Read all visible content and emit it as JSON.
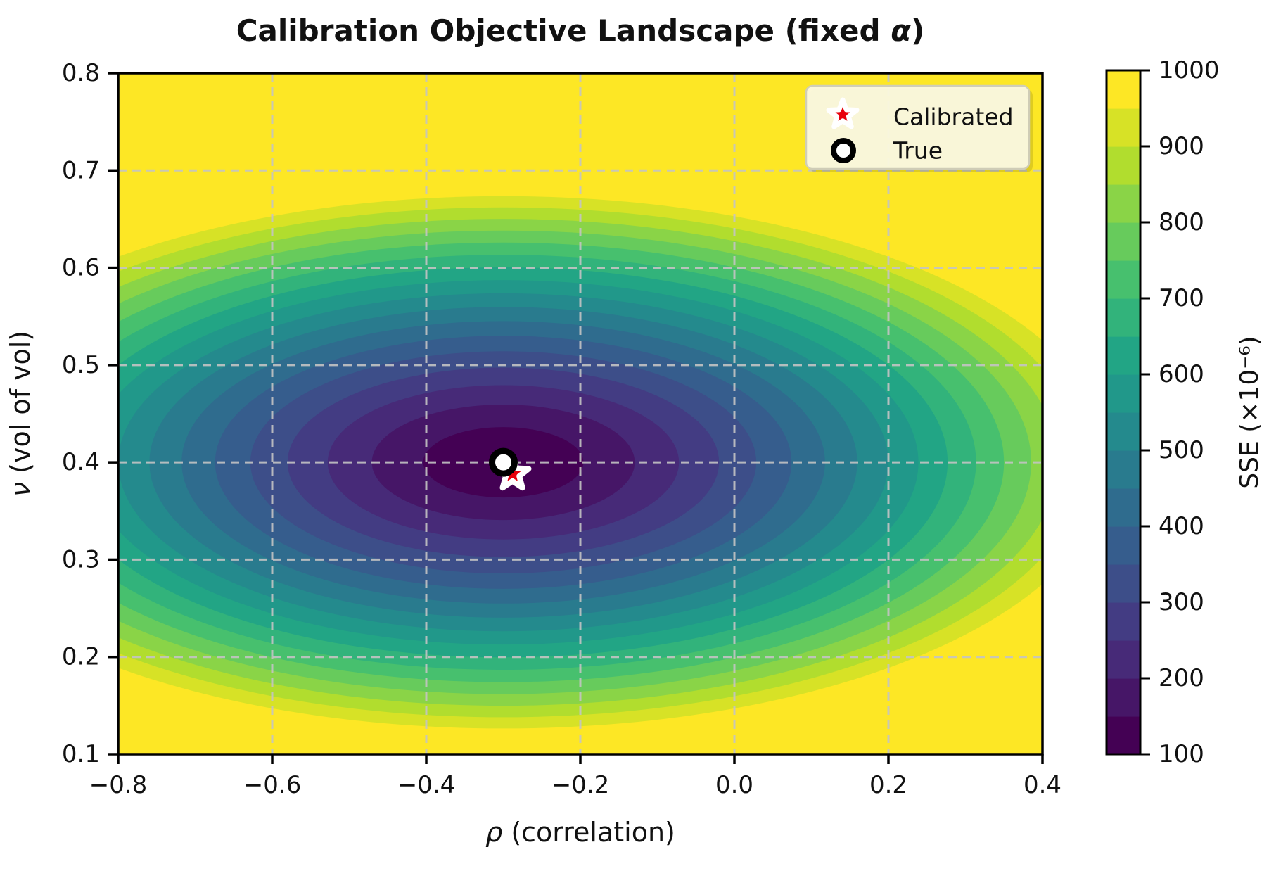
{
  "title": {
    "full": "Calibration Objective Landscape (fixed α)",
    "prefix": "Calibration Objective Landscape (fixed ",
    "alpha": "α",
    "suffix": ")"
  },
  "axes": {
    "xlabel": {
      "symbol": "ρ",
      "rest": " (correlation)"
    },
    "ylabel": {
      "symbol": "ν",
      "rest": " (vol of vol)"
    },
    "x_tick_labels": [
      "−0.8",
      "−0.6",
      "−0.4",
      "−0.2",
      "0.0",
      "0.2",
      "0.4"
    ],
    "y_tick_labels": [
      "0.1",
      "0.2",
      "0.3",
      "0.4",
      "0.5",
      "0.6",
      "0.7",
      "0.8"
    ]
  },
  "legend": {
    "entries": [
      {
        "marker": "star",
        "label": "Calibrated"
      },
      {
        "marker": "circle",
        "label": "True"
      }
    ]
  },
  "colorbar": {
    "label": "SSE (×10⁻⁶)",
    "tick_labels": [
      "100",
      "200",
      "300",
      "400",
      "500",
      "600",
      "700",
      "800",
      "900",
      "1000"
    ]
  },
  "chart_data": {
    "type": "filled_contour",
    "title": "Calibration Objective Landscape (fixed α)",
    "xlabel": "ρ (correlation)",
    "ylabel": "ν (vol of vol)",
    "xlim": [
      -0.8,
      0.4
    ],
    "ylim": [
      0.1,
      0.8
    ],
    "x_ticks": [
      -0.8,
      -0.6,
      -0.4,
      -0.2,
      0.0,
      0.2,
      0.4
    ],
    "y_ticks": [
      0.1,
      0.2,
      0.3,
      0.4,
      0.5,
      0.6,
      0.7,
      0.8
    ],
    "grid": {
      "visible": true,
      "style": "dashed",
      "color": "#c4c4c4"
    },
    "colorbar": {
      "label": "SSE (×10⁻⁶)",
      "vmin": 100,
      "vmax": 1000,
      "ticks": [
        100,
        200,
        300,
        400,
        500,
        600,
        700,
        800,
        900,
        1000
      ]
    },
    "levels": {
      "min": 100,
      "max": 1000,
      "step": 50
    },
    "band_colors": [
      "#440154",
      "#461667",
      "#472a78",
      "#433c83",
      "#3d4e89",
      "#365d8d",
      "#2f6c8e",
      "#297b8e",
      "#248a8d",
      "#21988a",
      "#22a585",
      "#32b37b",
      "#47c06e",
      "#67cb5c",
      "#8ad447",
      "#b1dd2e",
      "#d7e226",
      "#fde725"
    ],
    "surface_model": {
      "description": "SSE = 100 + 900 * (((rho+0.3)/0.82)^2 + ((nu-0.4)/0.285)^2)^0.7",
      "center_rho": -0.3,
      "center_nu": 0.4,
      "rx": 0.82,
      "ry": 0.285,
      "power": 0.7,
      "base": 100,
      "amplitude": 900
    },
    "markers": {
      "true_point": {
        "rho": -0.3,
        "nu": 0.4,
        "shape": "circle",
        "face": "#ffffff",
        "edge": "#000000"
      },
      "calibrated_point": {
        "rho": -0.288,
        "nu": 0.388,
        "shape": "star",
        "face": "#e8000b",
        "edge": "#ffffff"
      }
    },
    "legend_entries": [
      "Calibrated",
      "True"
    ]
  }
}
